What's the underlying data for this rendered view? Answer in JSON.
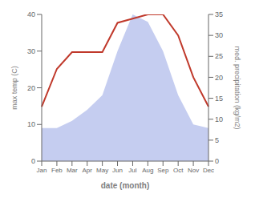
{
  "chart_data": {
    "type": "area",
    "xlabel": "date (month)",
    "ylabel": "max temp (C)",
    "y2label": "med. precipitation (kg/m2)",
    "categories": [
      "Jan",
      "Feb",
      "Mar",
      "Apr",
      "May",
      "Jun",
      "Jul",
      "Aug",
      "Sep",
      "Oct",
      "Nov",
      "Dec"
    ],
    "series": [
      {
        "type": "area",
        "color": "#c5cdf0",
        "values": [
          9,
          9,
          11,
          14,
          18,
          30,
          40,
          38,
          30,
          18,
          10,
          9
        ]
      },
      {
        "type": "line",
        "color": "#c0392b",
        "axis": "y2",
        "values": [
          13,
          22,
          26,
          26,
          26,
          33,
          34,
          35,
          35,
          30,
          20,
          13
        ]
      }
    ],
    "ylim": [
      0,
      40
    ],
    "yticks": [
      0,
      10,
      20,
      30,
      40
    ],
    "y2lim": [
      0,
      35
    ],
    "y2ticks": [
      0,
      5,
      10,
      15,
      20,
      25,
      30,
      35
    ],
    "grid": false
  }
}
